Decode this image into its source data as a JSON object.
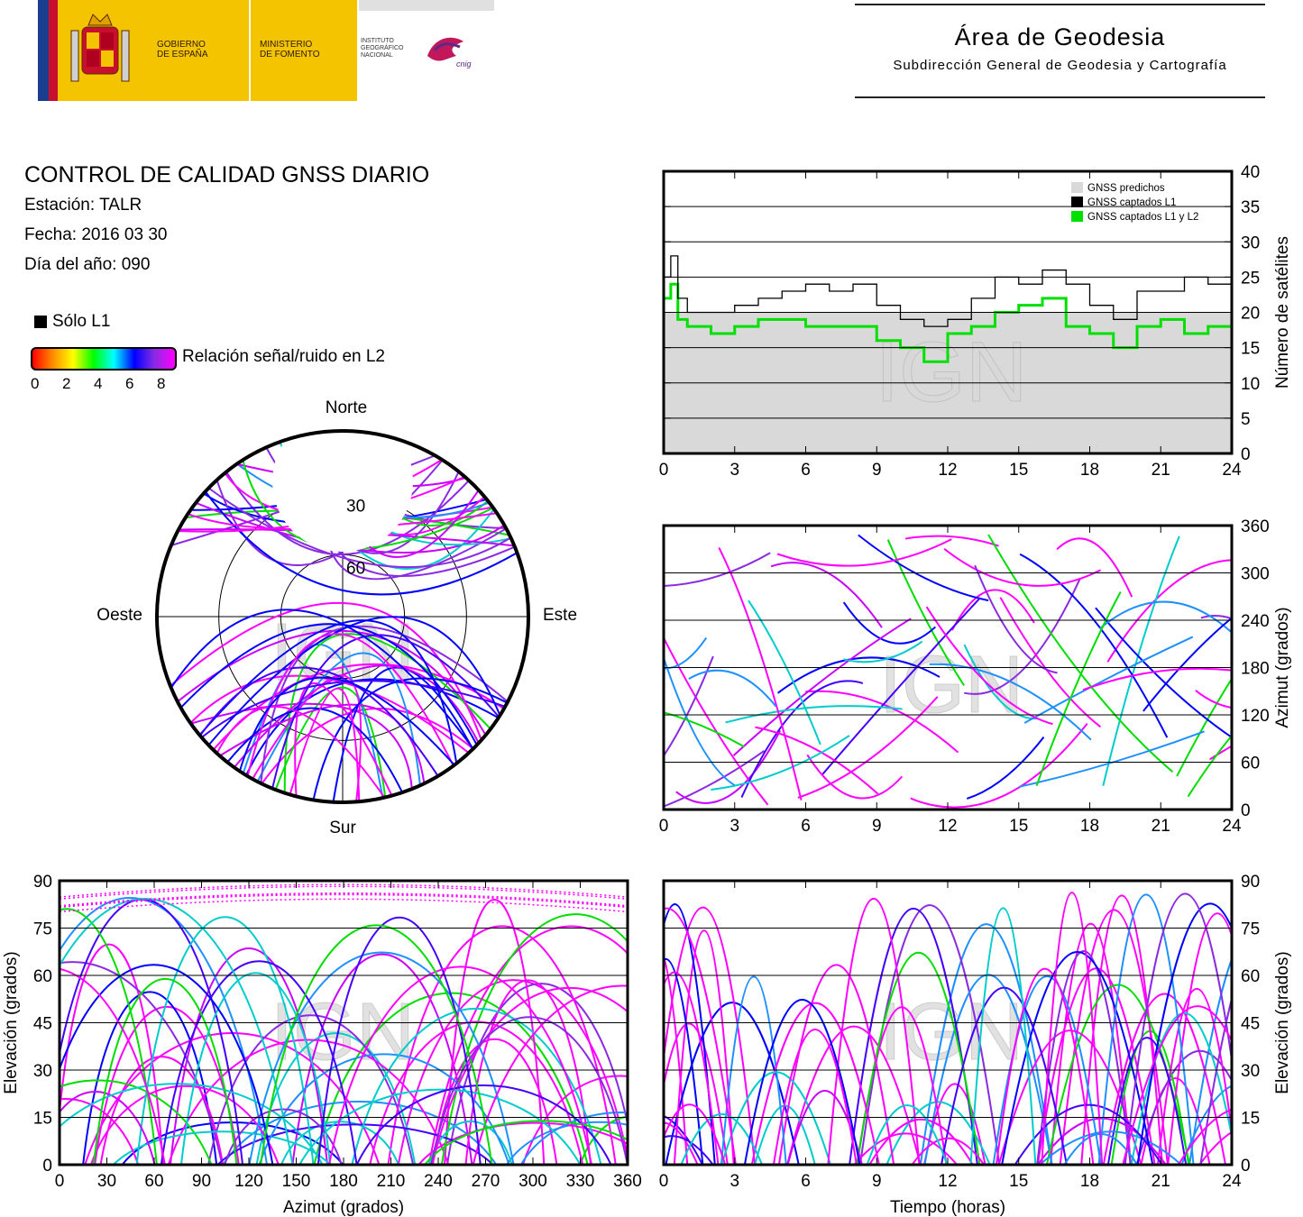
{
  "header": {
    "logos": {
      "gobierno": "GOBIERNO\nDE ESPAÑA",
      "ministerio": "MINISTERIO\nDE FOMENTO",
      "instituto": "INSTITUTO\nGEOGRÁFICO\nNACIONAL",
      "cnig": "cnig"
    },
    "area_title": "Área de Geodesia",
    "area_subtitle": "Subdirección General de Geodesia y Cartografía"
  },
  "report": {
    "title": "CONTROL DE CALIDAD GNSS DIARIO",
    "station": "Estación: TALR",
    "date": "Fecha: 2016 03 30",
    "day_of_year": "Día del año: 090"
  },
  "legend": {
    "l1_only": "Sólo L1",
    "snr_label": "Relación señal/ruido en L2",
    "snr_ticks": [
      "0",
      "2",
      "4",
      "6",
      "8"
    ],
    "colors": [
      "#ff0000",
      "#ff8c00",
      "#ffff00",
      "#00ff00",
      "#00ffff",
      "#0000ff",
      "#8a2be2",
      "#ff00ff"
    ]
  },
  "watermark": "IGN",
  "chart_data": [
    {
      "id": "satellites",
      "type": "area",
      "xlabel": "",
      "ylabel": "Número de satélites",
      "xlim": [
        0,
        24
      ],
      "ylim": [
        0,
        40
      ],
      "xticks": [
        "0",
        "3",
        "6",
        "9",
        "12",
        "15",
        "18",
        "21",
        "24"
      ],
      "yticks": [
        "0",
        "5",
        "10",
        "15",
        "20",
        "25",
        "30",
        "35",
        "40"
      ],
      "legend_position": "top-right",
      "grid": true,
      "series": [
        {
          "name": "GNSS predichos",
          "color": "#d9d9d9",
          "x": [
            0,
            1,
            2,
            3,
            4,
            5,
            6,
            7,
            8,
            9,
            10,
            11,
            12,
            13,
            14,
            15,
            16,
            17,
            18,
            19,
            20,
            21,
            22,
            23,
            24
          ],
          "values": [
            20,
            20,
            20,
            20,
            20,
            20,
            20,
            20,
            20,
            20,
            20,
            20,
            20,
            20,
            20,
            20,
            20,
            20,
            20,
            20,
            20,
            20,
            20,
            20,
            20
          ]
        },
        {
          "name": "GNSS captados L1",
          "color": "#000000",
          "x": [
            0,
            0.3,
            0.6,
            1,
            2,
            3,
            4,
            5,
            6,
            7,
            8,
            9,
            10,
            11,
            12,
            13,
            14,
            15,
            16,
            17,
            18,
            19,
            20,
            21,
            22,
            23,
            24
          ],
          "values": [
            25,
            28,
            22,
            20,
            20,
            21,
            22,
            23,
            24,
            23,
            24,
            21,
            19,
            18,
            19,
            22,
            25,
            24,
            26,
            24,
            21,
            19,
            23,
            23,
            25,
            24,
            25
          ]
        },
        {
          "name": "GNSS captados L1 y L2",
          "color": "#00e000",
          "x": [
            0,
            0.3,
            0.6,
            1,
            2,
            3,
            4,
            5,
            6,
            7,
            8,
            9,
            10,
            11,
            12,
            13,
            14,
            15,
            16,
            17,
            18,
            19,
            20,
            21,
            22,
            23,
            24
          ],
          "values": [
            22,
            24,
            19,
            18,
            17,
            18,
            19,
            19,
            18,
            18,
            18,
            16,
            15,
            13,
            17,
            18,
            20,
            21,
            22,
            18,
            17,
            15,
            18,
            19,
            17,
            18,
            20
          ]
        }
      ]
    },
    {
      "id": "skyplot",
      "type": "scatter",
      "xlabel": "",
      "ylabel": "",
      "directions": {
        "north": "Norte",
        "south": "Sur",
        "east": "Este",
        "west": "Oeste"
      },
      "ring_labels": [
        "30",
        "60"
      ],
      "rings_deg": [
        30,
        60
      ]
    },
    {
      "id": "azimuth_time",
      "type": "scatter",
      "xlabel": "",
      "ylabel": "Azimut (grados)",
      "xlim": [
        0,
        24
      ],
      "ylim": [
        0,
        360
      ],
      "xticks": [
        "0",
        "3",
        "6",
        "9",
        "12",
        "15",
        "18",
        "21",
        "24"
      ],
      "yticks": [
        "0",
        "60",
        "120",
        "180",
        "240",
        "300",
        "360"
      ],
      "grid": true
    },
    {
      "id": "elevation_azimuth",
      "type": "scatter",
      "xlabel": "Azimut (grados)",
      "ylabel": "Elevación (grados)",
      "xlim": [
        0,
        360
      ],
      "ylim": [
        0,
        90
      ],
      "xticks": [
        "0",
        "30",
        "60",
        "90",
        "120",
        "150",
        "180",
        "210",
        "240",
        "270",
        "300",
        "330",
        "360"
      ],
      "yticks": [
        "0",
        "15",
        "30",
        "45",
        "60",
        "75",
        "90"
      ],
      "grid": true
    },
    {
      "id": "elevation_time",
      "type": "scatter",
      "xlabel": "Tiempo (horas)",
      "ylabel": "Elevación (grados)",
      "xlim": [
        0,
        24
      ],
      "ylim": [
        0,
        90
      ],
      "xticks": [
        "0",
        "3",
        "6",
        "9",
        "12",
        "15",
        "18",
        "21",
        "24"
      ],
      "yticks": [
        "0",
        "15",
        "30",
        "45",
        "60",
        "75",
        "90"
      ],
      "grid": true
    }
  ]
}
